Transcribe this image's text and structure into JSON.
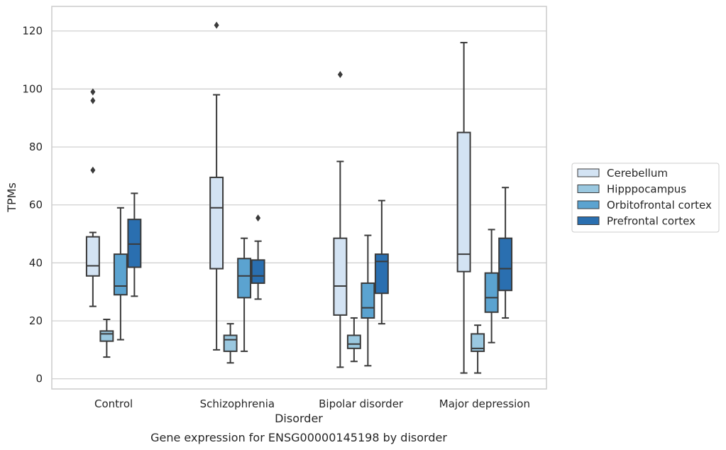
{
  "chart_data": {
    "type": "box",
    "xlabel": "Disorder",
    "ylabel": "TPMs",
    "caption": "Gene expression for ENSG00000145198 by disorder",
    "ylim": [
      -3.5,
      128.5
    ],
    "yticks": [
      0,
      20,
      40,
      60,
      80,
      100,
      120
    ],
    "grid": true,
    "legend_position": "right",
    "categories": [
      "Control",
      "Schizophrenia",
      "Bipolar disorder",
      "Major depression"
    ],
    "series": [
      {
        "name": "Cerebellum",
        "color": "#d3e3f3",
        "boxes": [
          {
            "min": 25,
            "q1": 35.5,
            "median": 39,
            "q3": 49,
            "max": 50.5,
            "outliers": [
              72,
              96,
              99
            ]
          },
          {
            "min": 10,
            "q1": 38,
            "median": 59,
            "q3": 69.5,
            "max": 98,
            "outliers": [
              122
            ]
          },
          {
            "min": 4,
            "q1": 22,
            "median": 32,
            "q3": 48.5,
            "max": 75,
            "outliers": [
              105
            ]
          },
          {
            "min": 2,
            "q1": 37,
            "median": 43,
            "q3": 85,
            "max": 116,
            "outliers": []
          }
        ]
      },
      {
        "name": "Hipppocampus",
        "color": "#9ac8e0",
        "boxes": [
          {
            "min": 7.5,
            "q1": 13,
            "median": 15.5,
            "q3": 16.5,
            "max": 20.5,
            "outliers": []
          },
          {
            "min": 5.5,
            "q1": 9.5,
            "median": 13.5,
            "q3": 15,
            "max": 19,
            "outliers": []
          },
          {
            "min": 6,
            "q1": 10.5,
            "median": 12,
            "q3": 15,
            "max": 21,
            "outliers": []
          },
          {
            "min": 2,
            "q1": 9.5,
            "median": 10.5,
            "q3": 15.5,
            "max": 18.5,
            "outliers": []
          }
        ]
      },
      {
        "name": "Orbitofrontal cortex",
        "color": "#5ba3d0",
        "boxes": [
          {
            "min": 13.5,
            "q1": 29,
            "median": 32,
            "q3": 43,
            "max": 59,
            "outliers": []
          },
          {
            "min": 9.5,
            "q1": 28,
            "median": 35.5,
            "q3": 41.5,
            "max": 48.5,
            "outliers": []
          },
          {
            "min": 4.5,
            "q1": 21,
            "median": 24.5,
            "q3": 33,
            "max": 49.5,
            "outliers": []
          },
          {
            "min": 12.5,
            "q1": 23,
            "median": 28,
            "q3": 36.5,
            "max": 51.5,
            "outliers": []
          }
        ]
      },
      {
        "name": "Prefrontal cortex",
        "color": "#2a6fb0",
        "boxes": [
          {
            "min": 28.5,
            "q1": 38.5,
            "median": 46.5,
            "q3": 55,
            "max": 64,
            "outliers": []
          },
          {
            "min": 27.5,
            "q1": 33,
            "median": 35.5,
            "q3": 41,
            "max": 47.5,
            "outliers": [
              55.5
            ]
          },
          {
            "min": 19,
            "q1": 29.5,
            "median": 40.5,
            "q3": 43,
            "max": 61.5,
            "outliers": []
          },
          {
            "min": 21,
            "q1": 30.5,
            "median": 38,
            "q3": 48.5,
            "max": 66,
            "outliers": []
          }
        ]
      }
    ]
  }
}
